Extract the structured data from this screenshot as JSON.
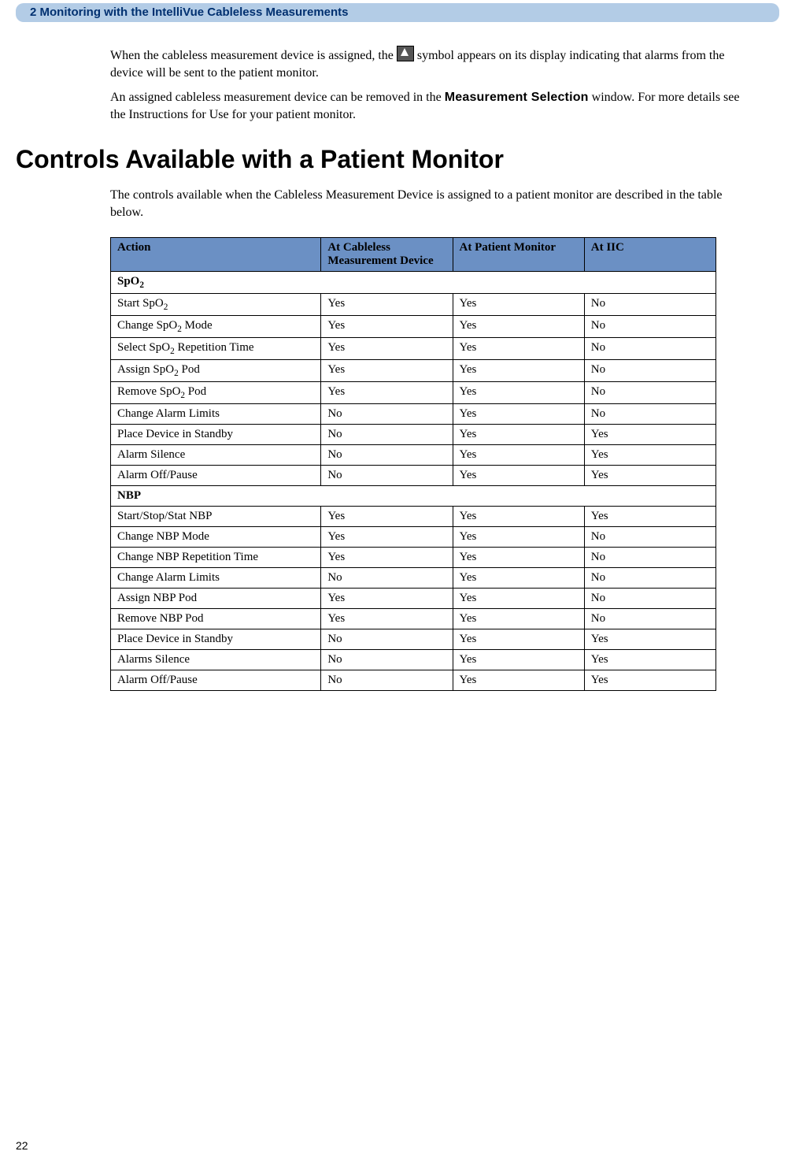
{
  "header": {
    "chapter": "2  Monitoring with the IntelliVue Cableless Measurements"
  },
  "intro": {
    "p1a": "When the cableless measurement device is assigned, the ",
    "p1b": " symbol appears on its display indicating that alarms from the device will be sent to the patient monitor.",
    "p2a": "An assigned cableless measurement device can be removed in the ",
    "p2_label": "Measurement Selection",
    "p2b": " window. For more details see the Instructions for Use for your patient monitor."
  },
  "section_title": "Controls Available with a Patient Monitor",
  "section_intro": "The controls available when the Cableless Measurement Device is assigned to a patient monitor are described in the table below.",
  "table": {
    "columns": [
      "Action",
      "At Cableless Measurement Device",
      "At Patient Monitor",
      "At IIC"
    ],
    "groups": [
      {
        "title_html": "SpO<sub class=\"sub\">2</sub>",
        "rows": [
          {
            "action_html": "Start SpO<sub class=\"sub\">2</sub>",
            "c1": "Yes",
            "c2": "Yes",
            "c3": "No"
          },
          {
            "action_html": "Change SpO<sub class=\"sub\">2</sub> Mode",
            "c1": "Yes",
            "c2": "Yes",
            "c3": "No"
          },
          {
            "action_html": "Select SpO<sub class=\"sub\">2</sub> Repetition Time",
            "c1": "Yes",
            "c2": "Yes",
            "c3": "No"
          },
          {
            "action_html": "Assign SpO<sub class=\"sub\">2</sub> Pod",
            "c1": "Yes",
            "c2": "Yes",
            "c3": "No"
          },
          {
            "action_html": "Remove SpO<sub class=\"sub\">2</sub> Pod",
            "c1": "Yes",
            "c2": "Yes",
            "c3": "No"
          },
          {
            "action_html": "Change Alarm Limits",
            "c1": "No",
            "c2": "Yes",
            "c3": "No"
          },
          {
            "action_html": "Place Device in Standby",
            "c1": "No",
            "c2": "Yes",
            "c3": "Yes"
          },
          {
            "action_html": "Alarm Silence",
            "c1": "No",
            "c2": "Yes",
            "c3": "Yes"
          },
          {
            "action_html": "Alarm Off/Pause",
            "c1": "No",
            "c2": "Yes",
            "c3": "Yes"
          }
        ]
      },
      {
        "title_html": "NBP",
        "rows": [
          {
            "action_html": "Start/Stop/Stat NBP",
            "c1": "Yes",
            "c2": "Yes",
            "c3": "Yes"
          },
          {
            "action_html": "Change NBP Mode",
            "c1": "Yes",
            "c2": "Yes",
            "c3": "No"
          },
          {
            "action_html": "Change NBP Repetition Time",
            "c1": "Yes",
            "c2": "Yes",
            "c3": "No"
          },
          {
            "action_html": "Change Alarm Limits",
            "c1": "No",
            "c2": "Yes",
            "c3": "No"
          },
          {
            "action_html": "Assign NBP Pod",
            "c1": "Yes",
            "c2": "Yes",
            "c3": "No"
          },
          {
            "action_html": "Remove NBP Pod",
            "c1": "Yes",
            "c2": "Yes",
            "c3": "No"
          },
          {
            "action_html": "Place Device in Standby",
            "c1": "No",
            "c2": "Yes",
            "c3": "Yes"
          },
          {
            "action_html": "Alarms Silence",
            "c1": "No",
            "c2": "Yes",
            "c3": "Yes"
          },
          {
            "action_html": "Alarm Off/Pause",
            "c1": "No",
            "c2": "Yes",
            "c3": "Yes"
          }
        ]
      }
    ]
  },
  "page_number": "22"
}
